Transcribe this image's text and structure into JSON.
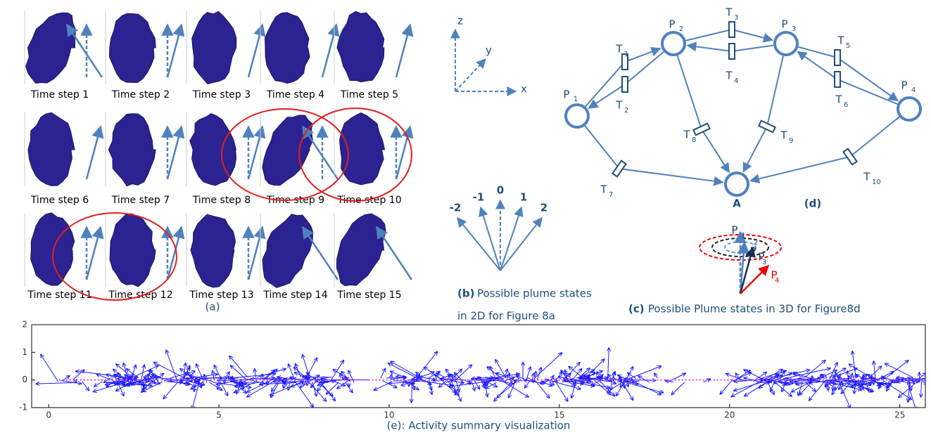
{
  "panel_a": {
    "caption": "(a)",
    "steps": [
      "Time step 1",
      "Time step 2",
      "Time step 3",
      "Time step 4",
      "Time step 5",
      "Time step 6",
      "Time step 7",
      "Time step 8",
      "Time step 9",
      "Time step 10",
      "Time step 11",
      "Time step 12",
      "Time step 13",
      "Time step 14",
      "Time step 15"
    ]
  },
  "axes_icon": {
    "z": "z",
    "y": "y",
    "x": "x"
  },
  "panel_b": {
    "states": [
      "-2",
      "-1",
      "0",
      "1",
      "2"
    ],
    "tag": "(b)",
    "caption_lines": [
      "Possible plume states",
      "in 2D for Figure 8a"
    ]
  },
  "panel_c": {
    "tag": "(c)",
    "caption": "Possible Plume states in 3D for Figure8d",
    "states": [
      {
        "label": "P",
        "sub": "1"
      },
      {
        "label": "P",
        "sub": "2"
      },
      {
        "label": "P",
        "sub": "3"
      },
      {
        "label": "P",
        "sub": "4"
      }
    ]
  },
  "panel_d": {
    "tag": "(d)",
    "places": [
      {
        "label": "P",
        "sub": "1"
      },
      {
        "label": "P",
        "sub": "2"
      },
      {
        "label": "P",
        "sub": "3"
      },
      {
        "label": "P",
        "sub": "4"
      },
      {
        "label": "A"
      }
    ],
    "transitions": [
      {
        "label": "T",
        "sub": "1"
      },
      {
        "label": "T",
        "sub": "2"
      },
      {
        "label": "T",
        "sub": "3"
      },
      {
        "label": "T",
        "sub": "4"
      },
      {
        "label": "T",
        "sub": "5"
      },
      {
        "label": "T",
        "sub": "6"
      },
      {
        "label": "T",
        "sub": "7"
      },
      {
        "label": "T",
        "sub": "8"
      },
      {
        "label": "T",
        "sub": "9"
      },
      {
        "label": "T",
        "sub": "10"
      }
    ]
  },
  "panel_e": {
    "caption": "(e): Activity summary visualization",
    "xlim": [
      -0.5,
      25.75
    ],
    "ylim": [
      -1,
      2
    ],
    "xticks": [
      0,
      5,
      10,
      15,
      20,
      25
    ],
    "yticks": [
      -1,
      0,
      1,
      2
    ]
  }
}
